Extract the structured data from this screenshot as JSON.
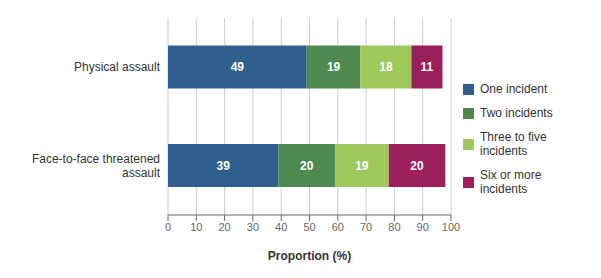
{
  "chart_data": {
    "type": "bar",
    "orientation": "horizontal",
    "stacked": true,
    "categories": [
      "Physical assault",
      "Face-to-face threatened\nassault"
    ],
    "series": [
      {
        "name": "One incident",
        "values": [
          49,
          39
        ],
        "color": "#2e5f8e"
      },
      {
        "name": "Two incidents",
        "values": [
          19,
          20
        ],
        "color": "#4e8a50"
      },
      {
        "name": "Three to five\nincidents",
        "values": [
          18,
          19
        ],
        "color": "#9dc85a"
      },
      {
        "name": "Six or more\nincidents",
        "values": [
          11,
          20
        ],
        "color": "#9b1f5a"
      }
    ],
    "xlabel": "Proportion (%)",
    "xlim": [
      0,
      100
    ],
    "xticks": [
      0,
      10,
      20,
      30,
      40,
      50,
      60,
      70,
      80,
      90,
      100
    ],
    "grid": true,
    "legend": "right",
    "data_labels": true
  }
}
